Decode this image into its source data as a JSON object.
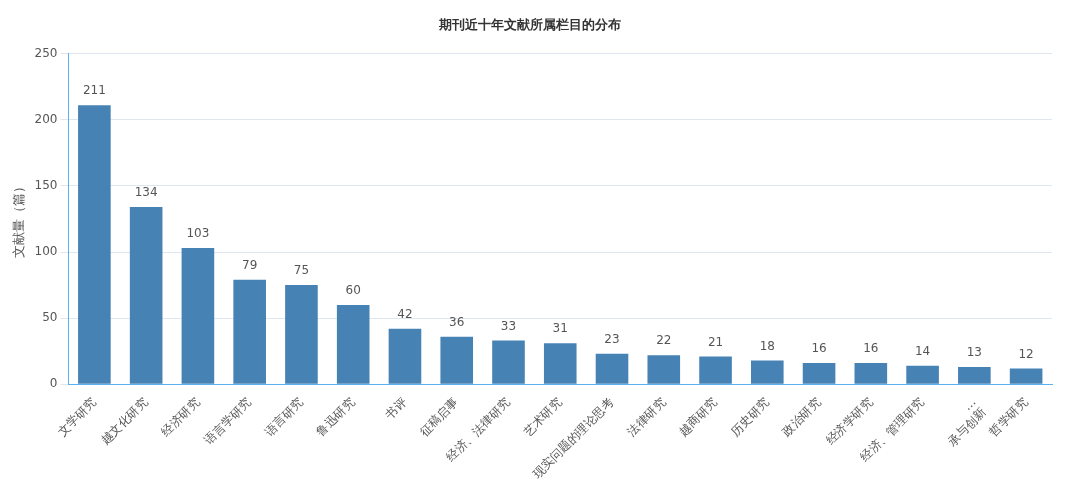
{
  "chart_data": {
    "type": "bar",
    "title": "期刊近十年文献所属栏目的分布",
    "ylabel": "文献量（篇）",
    "categories": [
      "文学研究",
      "越文化研究",
      "经济研究",
      "语言学研究",
      "语言研究",
      "鲁迅研究",
      "书评",
      "征稿启事",
      "经济、法律研究",
      "艺术研究",
      "现实问题的理论思考",
      "法律研究",
      "越商研究",
      "历史研究",
      "政治研究",
      "经济学研究",
      "经济、管理研究",
      "…\n承与创新",
      "哲学研究"
    ],
    "values": [
      211,
      134,
      103,
      79,
      75,
      60,
      42,
      36,
      33,
      31,
      23,
      22,
      21,
      18,
      16,
      16,
      14,
      13,
      12
    ],
    "color": "#4682b4",
    "ylim": [
      0,
      250
    ],
    "yticks": [
      0,
      50,
      100,
      150,
      200,
      250
    ],
    "grid": "y",
    "data_labels": true,
    "legend": false
  }
}
